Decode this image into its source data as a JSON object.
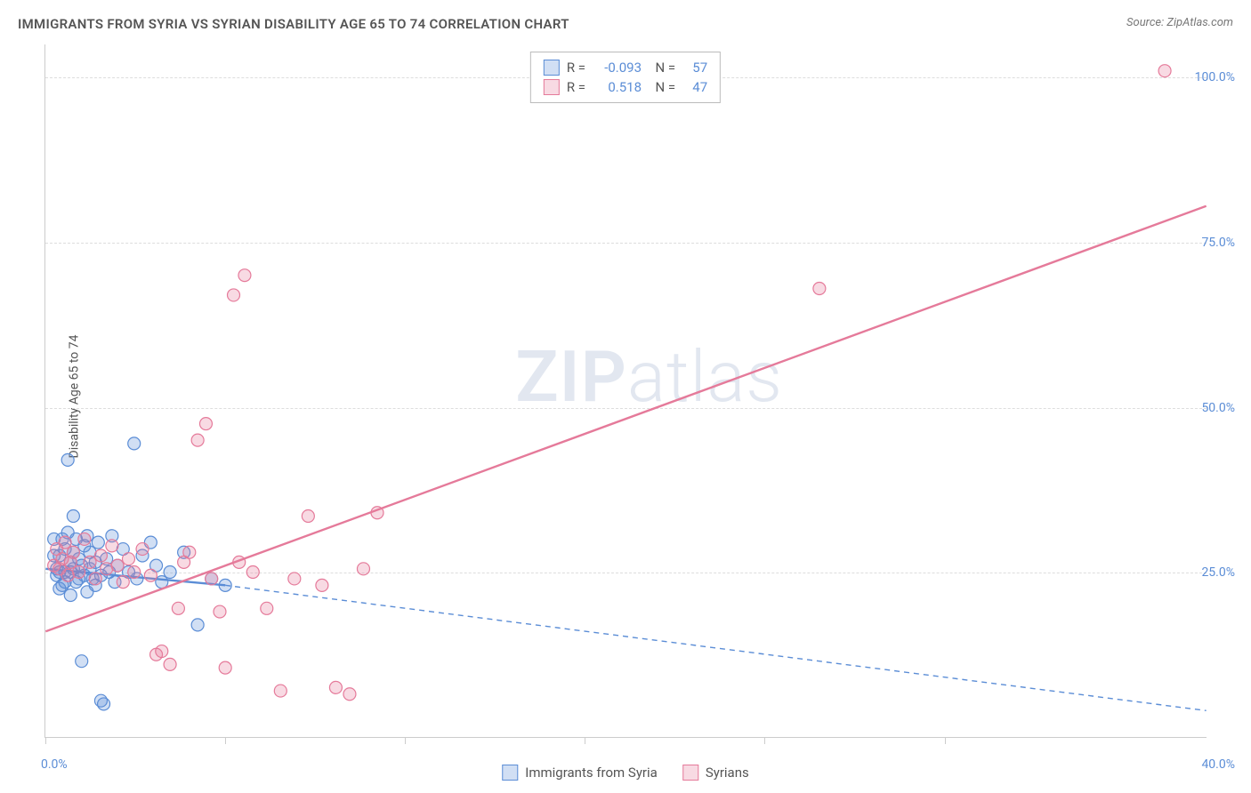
{
  "title": "IMMIGRANTS FROM SYRIA VS SYRIAN DISABILITY AGE 65 TO 74 CORRELATION CHART",
  "source": "Source: ZipAtlas.com",
  "watermark": {
    "bold": "ZIP",
    "rest": "atlas"
  },
  "chart": {
    "type": "scatter",
    "background_color": "#ffffff",
    "grid_color": "#dddddd",
    "axis_color": "#cccccc",
    "label_color": "#555555",
    "tick_label_color": "#5b8dd6",
    "title_fontsize": 15,
    "label_fontsize": 14,
    "ylabel": "Disability Age 65 to 74",
    "xlim": [
      0,
      42
    ],
    "ylim": [
      0,
      105
    ],
    "y_ticks": [
      25,
      50,
      75,
      100
    ],
    "y_tick_labels": [
      "25.0%",
      "50.0%",
      "75.0%",
      "100.0%"
    ],
    "x_tick_positions": [
      0,
      6.5,
      13,
      19.5,
      26,
      32.5
    ],
    "x_origin_label": "0.0%",
    "x_end_label": "40.0%",
    "marker_radius": 7,
    "marker_stroke_width": 1.2,
    "marker_fill_opacity": 0.28,
    "line_width": 2.4,
    "series": [
      {
        "name": "Immigrants from Syria",
        "color": "#5b8dd6",
        "fill_color": "rgba(91,141,214,0.28)",
        "stroke_color": "#5b8dd6",
        "R": "-0.093",
        "N": "57",
        "trend": {
          "x1": 0,
          "y1": 25.5,
          "x2": 6.5,
          "y2": 23.0,
          "solid_until_x": 6.5,
          "dash_to_x": 42,
          "dash_to_y": 4.0
        },
        "points": [
          [
            0.3,
            27.5
          ],
          [
            0.3,
            30.0
          ],
          [
            0.4,
            25.5
          ],
          [
            0.4,
            24.5
          ],
          [
            0.5,
            27.5
          ],
          [
            0.5,
            22.5
          ],
          [
            0.5,
            25.0
          ],
          [
            0.6,
            30.0
          ],
          [
            0.6,
            23.0
          ],
          [
            0.7,
            28.5
          ],
          [
            0.7,
            25.0
          ],
          [
            0.7,
            23.5
          ],
          [
            0.8,
            42.0
          ],
          [
            0.8,
            31.0
          ],
          [
            0.9,
            26.5
          ],
          [
            0.9,
            25.0
          ],
          [
            0.9,
            21.5
          ],
          [
            1.0,
            33.5
          ],
          [
            1.0,
            28.0
          ],
          [
            1.0,
            25.5
          ],
          [
            1.1,
            23.5
          ],
          [
            1.1,
            30.0
          ],
          [
            1.2,
            27.0
          ],
          [
            1.2,
            24.0
          ],
          [
            1.3,
            11.5
          ],
          [
            1.3,
            26.0
          ],
          [
            1.4,
            29.0
          ],
          [
            1.4,
            24.5
          ],
          [
            1.5,
            30.5
          ],
          [
            1.5,
            22.0
          ],
          [
            1.6,
            25.5
          ],
          [
            1.6,
            28.0
          ],
          [
            1.7,
            24.0
          ],
          [
            1.8,
            26.5
          ],
          [
            1.8,
            23.0
          ],
          [
            1.9,
            29.5
          ],
          [
            2.0,
            24.5
          ],
          [
            2.0,
            5.5
          ],
          [
            2.1,
            5.0
          ],
          [
            2.2,
            27.0
          ],
          [
            2.3,
            25.0
          ],
          [
            2.4,
            30.5
          ],
          [
            2.5,
            23.5
          ],
          [
            2.6,
            26.0
          ],
          [
            2.8,
            28.5
          ],
          [
            3.0,
            25.0
          ],
          [
            3.2,
            44.5
          ],
          [
            3.3,
            24.0
          ],
          [
            3.5,
            27.5
          ],
          [
            3.8,
            29.5
          ],
          [
            4.0,
            26.0
          ],
          [
            4.2,
            23.5
          ],
          [
            4.5,
            25.0
          ],
          [
            5.0,
            28.0
          ],
          [
            5.5,
            17.0
          ],
          [
            6.0,
            24.0
          ],
          [
            6.5,
            23.0
          ]
        ]
      },
      {
        "name": "Syrians",
        "color": "#e57a9a",
        "fill_color": "rgba(229,122,154,0.28)",
        "stroke_color": "#e57a9a",
        "R": "0.518",
        "N": "47",
        "trend": {
          "x1": 0,
          "y1": 16.0,
          "x2": 42,
          "y2": 80.5,
          "solid_until_x": 42
        },
        "points": [
          [
            0.3,
            26.0
          ],
          [
            0.4,
            28.5
          ],
          [
            0.5,
            25.5
          ],
          [
            0.6,
            27.0
          ],
          [
            0.7,
            29.5
          ],
          [
            0.8,
            24.5
          ],
          [
            0.9,
            26.5
          ],
          [
            1.0,
            28.0
          ],
          [
            1.2,
            25.0
          ],
          [
            1.4,
            30.0
          ],
          [
            1.6,
            26.5
          ],
          [
            1.8,
            24.0
          ],
          [
            2.0,
            27.5
          ],
          [
            2.2,
            25.5
          ],
          [
            2.4,
            29.0
          ],
          [
            2.6,
            26.0
          ],
          [
            2.8,
            23.5
          ],
          [
            3.0,
            27.0
          ],
          [
            3.2,
            25.0
          ],
          [
            3.5,
            28.5
          ],
          [
            3.8,
            24.5
          ],
          [
            4.0,
            12.5
          ],
          [
            4.2,
            13.0
          ],
          [
            4.5,
            11.0
          ],
          [
            4.8,
            19.5
          ],
          [
            5.0,
            26.5
          ],
          [
            5.2,
            28.0
          ],
          [
            5.5,
            45.0
          ],
          [
            5.8,
            47.5
          ],
          [
            6.0,
            24.0
          ],
          [
            6.3,
            19.0
          ],
          [
            6.5,
            10.5
          ],
          [
            6.8,
            67.0
          ],
          [
            7.0,
            26.5
          ],
          [
            7.2,
            70.0
          ],
          [
            7.5,
            25.0
          ],
          [
            8.0,
            19.5
          ],
          [
            8.5,
            7.0
          ],
          [
            9.0,
            24.0
          ],
          [
            9.5,
            33.5
          ],
          [
            10.0,
            23.0
          ],
          [
            10.5,
            7.5
          ],
          [
            11.0,
            6.5
          ],
          [
            11.5,
            25.5
          ],
          [
            12.0,
            34.0
          ],
          [
            28.0,
            68.0
          ],
          [
            40.5,
            101.0
          ]
        ]
      }
    ],
    "bottom_legend": [
      {
        "label": "Immigrants from Syria",
        "fill": "rgba(91,141,214,0.28)",
        "stroke": "#5b8dd6"
      },
      {
        "label": "Syrians",
        "fill": "rgba(229,122,154,0.28)",
        "stroke": "#e57a9a"
      }
    ]
  }
}
